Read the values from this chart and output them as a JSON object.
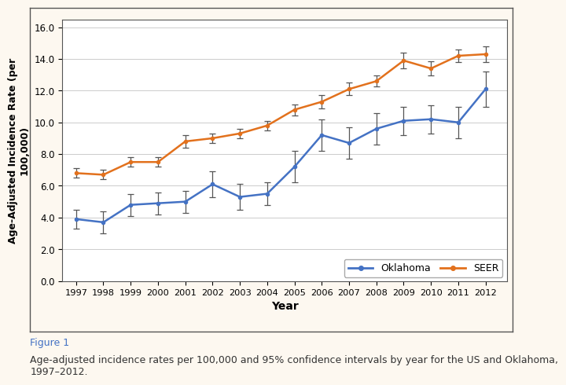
{
  "years": [
    1997,
    1998,
    1999,
    2000,
    2001,
    2002,
    2003,
    2004,
    2005,
    2006,
    2007,
    2008,
    2009,
    2010,
    2011,
    2012
  ],
  "oklahoma_values": [
    3.9,
    3.7,
    4.8,
    4.9,
    5.0,
    6.1,
    5.3,
    5.5,
    7.2,
    9.2,
    8.7,
    9.6,
    10.1,
    10.2,
    10.0,
    12.1
  ],
  "oklahoma_err_low": [
    0.6,
    0.7,
    0.7,
    0.7,
    0.7,
    0.8,
    0.8,
    0.7,
    1.0,
    1.0,
    1.0,
    1.0,
    0.9,
    0.9,
    1.0,
    1.1
  ],
  "oklahoma_err_high": [
    0.6,
    0.7,
    0.7,
    0.7,
    0.7,
    0.8,
    0.8,
    0.7,
    1.0,
    1.0,
    1.0,
    1.0,
    0.9,
    0.9,
    1.0,
    1.1
  ],
  "seer_values": [
    6.8,
    6.7,
    7.5,
    7.5,
    8.8,
    9.0,
    9.3,
    9.8,
    10.8,
    11.3,
    12.1,
    12.6,
    13.9,
    13.4,
    14.2,
    14.3
  ],
  "seer_err_low": [
    0.3,
    0.3,
    0.3,
    0.3,
    0.4,
    0.3,
    0.3,
    0.3,
    0.35,
    0.4,
    0.4,
    0.35,
    0.5,
    0.45,
    0.4,
    0.5
  ],
  "seer_err_high": [
    0.3,
    0.3,
    0.3,
    0.3,
    0.4,
    0.3,
    0.3,
    0.3,
    0.35,
    0.4,
    0.4,
    0.35,
    0.5,
    0.45,
    0.4,
    0.5
  ],
  "oklahoma_color": "#4472C4",
  "seer_color": "#E2711D",
  "ylabel": "Age-Adjusted Incidence Rate (per\n100,000)",
  "xlabel": "Year",
  "yticks": [
    0.0,
    2.0,
    4.0,
    6.0,
    8.0,
    10.0,
    12.0,
    14.0,
    16.0
  ],
  "ylim": [
    0.0,
    16.5
  ],
  "background_color": "#fdf8f0",
  "plot_bg_color": "#ffffff",
  "figure_caption": "Figure 1",
  "caption_text": "Age-adjusted incidence rates per 100,000 and 95% confidence intervals by year for the US and Oklahoma,\n1997–2012."
}
